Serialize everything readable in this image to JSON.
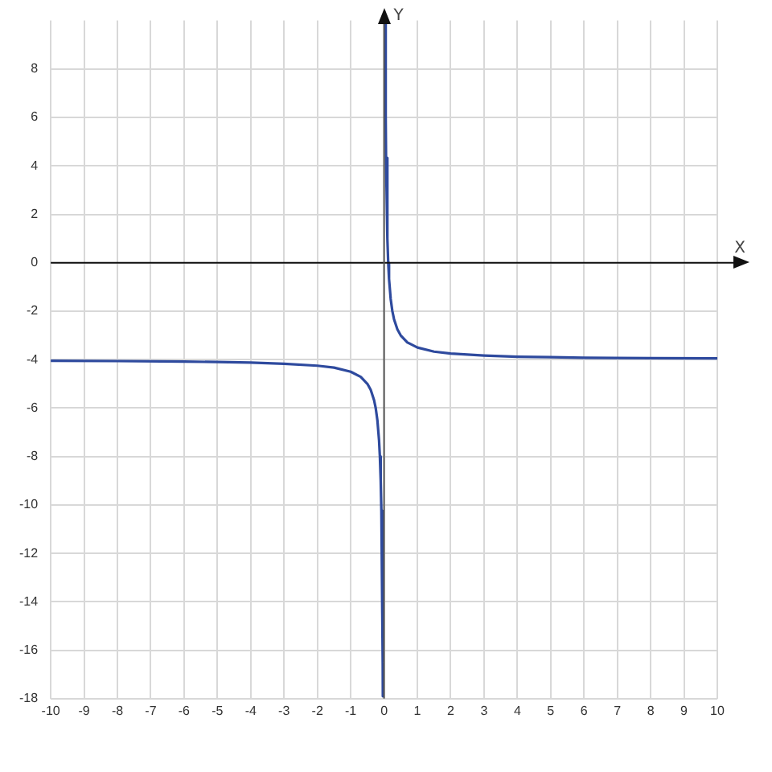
{
  "chart_data": {
    "type": "line",
    "xlabel": "X",
    "ylabel": "Y",
    "grid": true,
    "marker": "none",
    "line_style": "solid",
    "legend": false,
    "x": [
      -10,
      -8,
      -6,
      -5,
      -4,
      -3,
      -2,
      -1.5,
      -1,
      -0.7,
      -0.5,
      -0.4,
      -0.3,
      -0.25,
      -0.2,
      -0.15,
      -0.125,
      -0.1,
      -0.08,
      -0.04,
      -0.036,
      0,
      0.036,
      0.05,
      0.06,
      0.1,
      0.125,
      0.15,
      0.2,
      0.25,
      0.3,
      0.4,
      0.5,
      0.7,
      1,
      1.5,
      2,
      3,
      4,
      5,
      6,
      8,
      10
    ],
    "series": [
      {
        "color": "#2e4a9e",
        "values": [
          -4.05,
          -4.06,
          -4.08,
          -4.1,
          -4.12,
          -4.17,
          -4.25,
          -4.33,
          -4.5,
          -4.71,
          -5,
          -5.25,
          -5.67,
          -6,
          -6.5,
          -7.33,
          -8,
          -9,
          -10.25,
          -16.5,
          -17.9,
          null,
          9.9,
          6,
          4.33,
          1,
          0,
          -0.67,
          -1.5,
          -2,
          -2.33,
          -2.75,
          -3,
          -3.29,
          -3.5,
          -3.67,
          -3.75,
          -3.83,
          -3.88,
          -3.9,
          -3.92,
          -3.94,
          -3.95
        ]
      }
    ],
    "xlim": [
      -10,
      10
    ],
    "xticks": [
      -10,
      -9,
      -8,
      -7,
      -6,
      -5,
      -4,
      -3,
      -2,
      -1,
      0,
      1,
      2,
      3,
      4,
      5,
      6,
      7,
      8,
      9,
      10
    ],
    "ylim": [
      -18,
      10
    ],
    "yticks": [
      -18,
      -16,
      -14,
      -12,
      -10,
      -8,
      -6,
      -4,
      -2,
      0,
      2,
      4,
      6,
      8
    ]
  }
}
